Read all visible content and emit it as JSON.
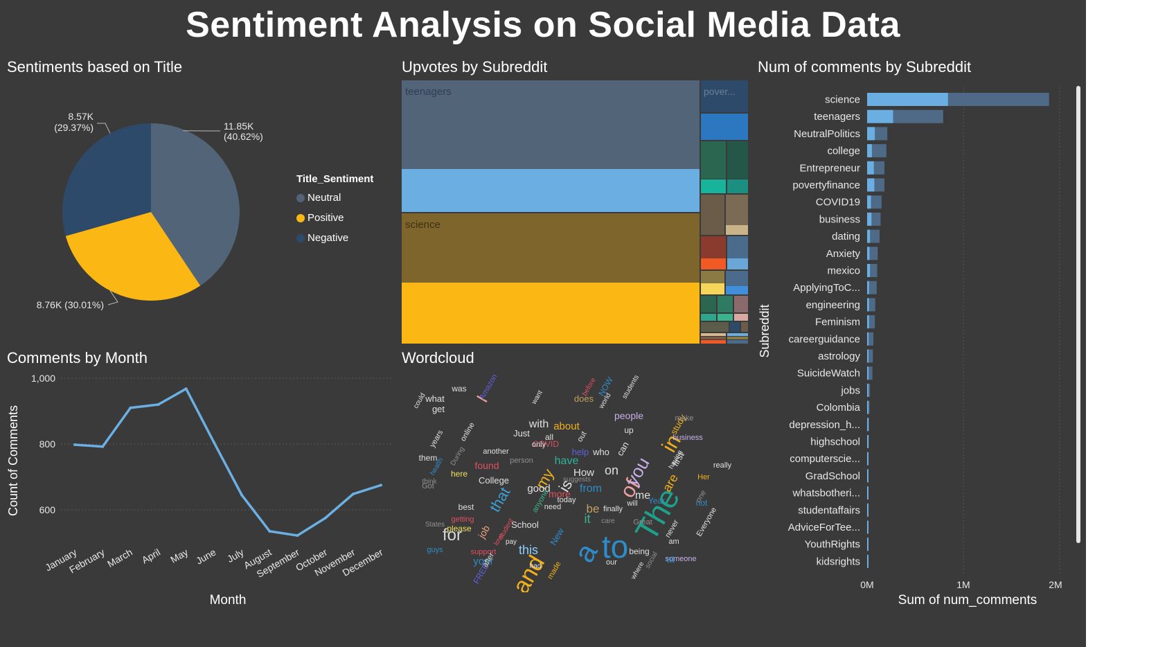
{
  "page_title": "Sentiment Analysis on Social Media Data",
  "panels": {
    "pie_title": "Sentiments based on Title",
    "treemap_title": "Upvotes by Subreddit",
    "bar_title": "Num of comments by Subreddit",
    "line_title": "Comments by Month",
    "wordcloud_title": "Wordcloud"
  },
  "colors": {
    "neutral": "#526478",
    "positive": "#fbb713",
    "negative": "#2e4a6b",
    "line": "#6cb0e3",
    "bar_light": "#6aaee2",
    "bar_dark": "#4f6a87",
    "background": "#3a3a3a"
  },
  "chart_data": [
    {
      "type": "pie",
      "title": "Sentiments based on Title",
      "legend_title": "Title_Sentiment",
      "legend_position": "right",
      "slices": [
        {
          "name": "Neutral",
          "value": 11850,
          "label": "11.85K",
          "pct_label": "(40.62%)",
          "color": "#526478"
        },
        {
          "name": "Positive",
          "value": 8760,
          "label": "8.76K (30.01%)",
          "color": "#fbb713"
        },
        {
          "name": "Negative",
          "value": 8570,
          "label": "8.57K",
          "pct_label": "(29.37%)",
          "color": "#2e4a6b"
        }
      ]
    },
    {
      "type": "treemap",
      "title": "Upvotes by Subreddit",
      "labels": [
        "teenagers",
        "science",
        "pover..."
      ],
      "groups": [
        {
          "name": "teenagers",
          "value": 0.49,
          "sub": [
            {
              "value": 0.335,
              "color": "#526478"
            },
            {
              "value": 0.165,
              "color": "#6aaee2"
            }
          ]
        },
        {
          "name": "science",
          "value": 0.51,
          "sub": [
            {
              "value": 0.27,
              "color": "#7d652b"
            },
            {
              "value": 0.23,
              "color": "#fbb713"
            }
          ]
        },
        {
          "name": "pover...",
          "value": 0.12,
          "sub": []
        }
      ]
    },
    {
      "type": "bar",
      "title": "Num of comments by Subreddit",
      "orientation": "horizontal",
      "ylabel": "Subreddit",
      "xlabel": "Sum of num_comments",
      "xticks": [
        "0M",
        "1M",
        "2M"
      ],
      "xlim": [
        0,
        2000000
      ],
      "categories": [
        "science",
        "teenagers",
        "NeutralPolitics",
        "college",
        "Entrepreneur",
        "povertyfinance",
        "COVID19",
        "business",
        "dating",
        "Anxiety",
        "mexico",
        "ApplyingToC...",
        "engineering",
        "Feminism",
        "careerguidance",
        "astrology",
        "SuicideWatch",
        "jobs",
        "Colombia",
        "depression_h...",
        "highschool",
        "computerscie...",
        "GradSchool",
        "whatsbotheri...",
        "studentaffairs",
        "AdviceForTee...",
        "YouthRights",
        "kidsrights"
      ],
      "series": [
        {
          "values": [
            1890000,
            790000,
            210000,
            200000,
            180000,
            180000,
            150000,
            140000,
            130000,
            110000,
            105000,
            100000,
            85000,
            80000,
            65000,
            60000,
            55000,
            30000,
            25000,
            20000,
            18000,
            15000,
            14000,
            12000,
            10000,
            9000,
            8000,
            6000
          ]
        },
        {
          "values": [
            840000,
            270000,
            80000,
            50000,
            70000,
            75000,
            40000,
            45000,
            30000,
            25000,
            30000,
            20000,
            20000,
            20000,
            15000,
            15000,
            15000,
            10000,
            8000,
            6000,
            6000,
            5000,
            5000,
            4000,
            3000,
            3000,
            3000,
            2000
          ]
        }
      ]
    },
    {
      "type": "line",
      "title": "Comments by Month",
      "xlabel": "Month",
      "ylabel": "Count of Comments",
      "yticks": [
        "1,000",
        "800",
        "600"
      ],
      "ylim": [
        520,
        1000
      ],
      "categories": [
        "January",
        "February",
        "March",
        "April",
        "May",
        "June",
        "July",
        "August",
        "September",
        "October",
        "November",
        "December"
      ],
      "series": [
        {
          "values": [
            798,
            792,
            910,
            920,
            968,
            805,
            645,
            535,
            522,
            575,
            648,
            675
          ]
        }
      ]
    }
  ],
  "wordcloud": [
    {
      "t": "The",
      "s": 46,
      "c": "#1fa08a",
      "r": -60
    },
    {
      "t": "to",
      "s": 46,
      "c": "#2e8cc9",
      "r": 0
    },
    {
      "t": "a",
      "s": 42,
      "c": "#2e8cc9",
      "r": -60
    },
    {
      "t": "and",
      "s": 34,
      "c": "#f0b01c",
      "r": -60
    },
    {
      "t": "in",
      "s": 30,
      "c": "#f0b01c",
      "r": -60
    },
    {
      "t": "of",
      "s": 30,
      "c": "#f0a0a0",
      "r": -60
    },
    {
      "t": "you",
      "s": 26,
      "c": "#c7b0e8",
      "r": -60
    },
    {
      "t": "for",
      "s": 24,
      "c": "#d9d9d9",
      "r": 0
    },
    {
      "t": "that",
      "s": 22,
      "c": "#3c9fd4",
      "r": -60
    },
    {
      "t": "my",
      "s": 22,
      "c": "#f0b01c",
      "r": -60
    },
    {
      "t": "is",
      "s": 22,
      "c": "#e0e0e0",
      "r": -60
    },
    {
      "t": "I",
      "s": 24,
      "c": "#f0a0a0",
      "r": -60
    },
    {
      "t": "this",
      "s": 18,
      "c": "#8fd0ff",
      "r": 0
    },
    {
      "t": "it",
      "s": 18,
      "c": "#3ab48c",
      "r": 0
    },
    {
      "t": "be",
      "s": 17,
      "c": "#c2a060",
      "r": 0
    },
    {
      "t": "on",
      "s": 18,
      "c": "#e0e0e0",
      "r": 0
    },
    {
      "t": "are",
      "s": 18,
      "c": "#f0b01c",
      "r": -60
    },
    {
      "t": "me",
      "s": 16,
      "c": "#e0e0e0",
      "r": 0
    },
    {
      "t": "with",
      "s": 16,
      "c": "#e0e0e0",
      "r": 0
    },
    {
      "t": "have",
      "s": 16,
      "c": "#2fb39c",
      "r": 0
    },
    {
      "t": "from",
      "s": 16,
      "c": "#2e8cc9",
      "r": 0
    },
    {
      "t": "good",
      "s": 15,
      "c": "#e0e0e0",
      "r": 0
    },
    {
      "t": "your",
      "s": 15,
      "c": "#2e8cc9",
      "r": 0
    },
    {
      "t": "job",
      "s": 14,
      "c": "#f0a080",
      "r": -60
    },
    {
      "t": "about",
      "s": 15,
      "c": "#f0b01c",
      "r": 0
    },
    {
      "t": "more",
      "s": 14,
      "c": "#e05060",
      "r": 0
    },
    {
      "t": "people",
      "s": 14,
      "c": "#c7b0e8",
      "r": 0
    },
    {
      "t": "College",
      "s": 13,
      "c": "#e0e0e0",
      "r": 0
    },
    {
      "t": "School",
      "s": 13,
      "c": "#e0e0e0",
      "r": 0
    },
    {
      "t": "How",
      "s": 15,
      "c": "#e0e0e0",
      "r": 0
    },
    {
      "t": "what",
      "s": 13,
      "c": "#e0e0e0",
      "r": 0
    },
    {
      "t": "get",
      "s": 13,
      "c": "#e0e0e0",
      "r": 0
    },
    {
      "t": "found",
      "s": 14,
      "c": "#e05060",
      "r": 0
    },
    {
      "t": "New",
      "s": 13,
      "c": "#2e8cc9",
      "r": -60
    },
    {
      "t": "FREE",
      "s": 12,
      "c": "#6060e0",
      "r": -60
    },
    {
      "t": "here",
      "s": 12,
      "c": "#f0e060",
      "r": 0
    },
    {
      "t": "please",
      "s": 12,
      "c": "#f0e060",
      "r": 0
    },
    {
      "t": "them",
      "s": 12,
      "c": "#e0e0e0",
      "r": 0
    },
    {
      "t": "Just",
      "s": 13,
      "c": "#e0e0e0",
      "r": 0
    },
    {
      "t": "COVID",
      "s": 12,
      "c": "#e05060",
      "r": 0
    },
    {
      "t": "help",
      "s": 13,
      "c": "#6060e0",
      "r": 0
    },
    {
      "t": "who",
      "s": 13,
      "c": "#e0e0e0",
      "r": 0
    },
    {
      "t": "first",
      "s": 13,
      "c": "#e0e0e0",
      "r": -60
    },
    {
      "t": "study",
      "s": 13,
      "c": "#f0b01c",
      "r": -60
    },
    {
      "t": "business",
      "s": 11,
      "c": "#c7b0e8",
      "r": 0
    },
    {
      "t": "make",
      "s": 11,
      "c": "#909090",
      "r": 0
    },
    {
      "t": "finally",
      "s": 11,
      "c": "#e0e0e0",
      "r": 0
    },
    {
      "t": "Year",
      "s": 12,
      "c": "#2e8cc9",
      "r": 0
    },
    {
      "t": "someone",
      "s": 11,
      "c": "#c7b0e8",
      "r": 0
    },
    {
      "t": "support",
      "s": 11,
      "c": "#e05060",
      "r": 0
    },
    {
      "t": "guys",
      "s": 11,
      "c": "#2e8cc9",
      "r": 0
    },
    {
      "t": "another",
      "s": 11,
      "c": "#e0e0e0",
      "r": 0
    },
    {
      "t": "person",
      "s": 11,
      "c": "#909090",
      "r": 0
    },
    {
      "t": "does",
      "s": 13,
      "c": "#c2a060",
      "r": 0
    },
    {
      "t": "NOW",
      "s": 12,
      "c": "#2e8cc9",
      "r": -60
    },
    {
      "t": "up",
      "s": 12,
      "c": "#e0e0e0",
      "r": 0
    },
    {
      "t": "all",
      "s": 12,
      "c": "#e0e0e0",
      "r": 0
    },
    {
      "t": "only",
      "s": 11,
      "c": "#e0e0e0",
      "r": 0
    },
    {
      "t": "need",
      "s": 11,
      "c": "#e0e0e0",
      "r": 0
    },
    {
      "t": "today",
      "s": 11,
      "c": "#e0e0e0",
      "r": 0
    },
    {
      "t": "being",
      "s": 12,
      "c": "#e0e0e0",
      "r": 0
    },
    {
      "t": "at",
      "s": 14,
      "c": "#2e8cc9",
      "r": 0
    },
    {
      "t": "our",
      "s": 11,
      "c": "#e0e0e0",
      "r": 0
    },
    {
      "t": "will",
      "s": 11,
      "c": "#e0e0e0",
      "r": 0
    },
    {
      "t": "Great",
      "s": 11,
      "c": "#909090",
      "r": 0
    },
    {
      "t": "am",
      "s": 11,
      "c": "#e0e0e0",
      "r": 0
    },
    {
      "t": "Her",
      "s": 11,
      "c": "#f0b01c",
      "r": 0
    },
    {
      "t": "Everyone",
      "s": 11,
      "c": "#e0e0e0",
      "r": -60
    },
    {
      "t": "never",
      "s": 11,
      "c": "#e0e0e0",
      "r": -60
    },
    {
      "t": "years",
      "s": 11,
      "c": "#e0e0e0",
      "r": -60
    },
    {
      "t": "online",
      "s": 11,
      "c": "#e0e0e0",
      "r": -60
    },
    {
      "t": "States",
      "s": 10,
      "c": "#909090",
      "r": 0
    },
    {
      "t": "getting",
      "s": 11,
      "c": "#e05060",
      "r": 0
    },
    {
      "t": "best",
      "s": 12,
      "c": "#e0e0e0",
      "r": 0
    },
    {
      "t": "was",
      "s": 12,
      "c": "#e0e0e0",
      "r": 0
    },
    {
      "t": "Amazon",
      "s": 11,
      "c": "#6060e0",
      "r": -60
    },
    {
      "t": "students",
      "s": 10,
      "c": "#e0e0e0",
      "r": -60
    },
    {
      "t": "could",
      "s": 10,
      "c": "#e0e0e0",
      "r": -60
    },
    {
      "t": "want",
      "s": 10,
      "c": "#e0e0e0",
      "r": -60
    },
    {
      "t": "before",
      "s": 10,
      "c": "#e05060",
      "r": -60
    },
    {
      "t": "world",
      "s": 10,
      "c": "#e0e0e0",
      "r": -60
    },
    {
      "t": "health",
      "s": 10,
      "c": "#2e8cc9",
      "r": -60
    },
    {
      "t": "think",
      "s": 10,
      "c": "#909090",
      "r": 0
    },
    {
      "t": "Got",
      "s": 11,
      "c": "#909090",
      "r": 0
    },
    {
      "t": "suggests",
      "s": 10,
      "c": "#909090",
      "r": 0
    },
    {
      "t": "care",
      "s": 10,
      "c": "#909090",
      "r": 0
    },
    {
      "t": "pay",
      "s": 10,
      "c": "#e0e0e0",
      "r": 0
    },
    {
      "t": "had",
      "s": 10,
      "c": "#e0e0e0",
      "r": 0
    },
    {
      "t": "made",
      "s": 11,
      "c": "#f0b01c",
      "r": -60
    },
    {
      "t": "where",
      "s": 10,
      "c": "#e0e0e0",
      "r": -60
    },
    {
      "t": "social",
      "s": 10,
      "c": "#909090",
      "r": -60
    },
    {
      "t": "student",
      "s": 10,
      "c": "#e05060",
      "r": -60
    },
    {
      "t": "love",
      "s": 10,
      "c": "#e05060",
      "r": -60
    },
    {
      "t": "after",
      "s": 11,
      "c": "#e0e0e0",
      "r": -60
    },
    {
      "t": "anyone",
      "s": 11,
      "c": "#3ab48c",
      "r": -60
    },
    {
      "t": "out",
      "s": 11,
      "c": "#e0e0e0",
      "r": -60
    },
    {
      "t": "can",
      "s": 13,
      "c": "#e0e0e0",
      "r": -60
    },
    {
      "t": "not",
      "s": 12,
      "c": "#2e8cc9",
      "r": 0
    },
    {
      "t": "really",
      "s": 11,
      "c": "#e0e0e0",
      "r": 0
    },
    {
      "t": "During",
      "s": 10,
      "c": "#909090",
      "r": -60
    },
    {
      "t": "having",
      "s": 10,
      "c": "#e0e0e0",
      "r": -60
    },
    {
      "t": "one",
      "s": 11,
      "c": "#909090",
      "r": -60
    }
  ]
}
